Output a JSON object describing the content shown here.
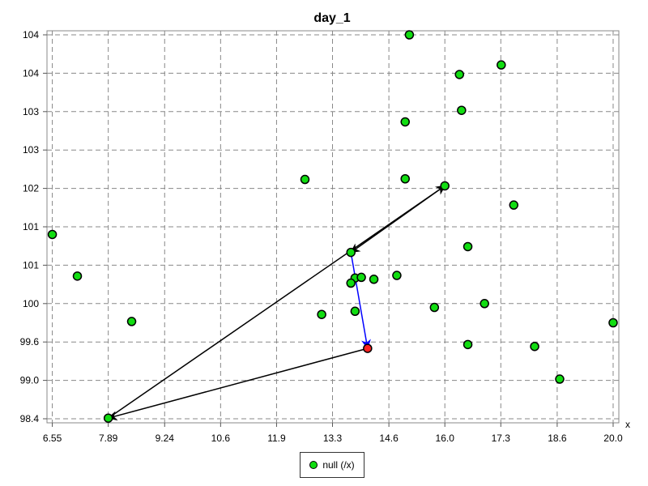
{
  "chart_data": {
    "type": "scatter",
    "title": "day_1",
    "xlabel": "x",
    "ylabel": "",
    "xlim": [
      6.5,
      20.0
    ],
    "ylim": [
      98.4,
      104.4
    ],
    "grid": true,
    "legend_position": "bottom-center",
    "x_ticks": [
      {
        "value": 6.55,
        "label": "6.55"
      },
      {
        "value": 7.89,
        "label": "7.89"
      },
      {
        "value": 9.24,
        "label": "9.24"
      },
      {
        "value": 10.58,
        "label": "10.6"
      },
      {
        "value": 11.92,
        "label": "11.9"
      },
      {
        "value": 13.26,
        "label": "13.3"
      },
      {
        "value": 14.61,
        "label": "14.6"
      },
      {
        "value": 15.95,
        "label": "16.0"
      },
      {
        "value": 17.29,
        "label": "17.3"
      },
      {
        "value": 18.64,
        "label": "18.6"
      },
      {
        "value": 19.98,
        "label": "20.0"
      }
    ],
    "y_ticks": [
      {
        "value": 98.4,
        "label": "98.4"
      },
      {
        "value": 99.0,
        "label": "99.0"
      },
      {
        "value": 99.6,
        "label": "99.6"
      },
      {
        "value": 100.2,
        "label": "100"
      },
      {
        "value": 100.8,
        "label": "101"
      },
      {
        "value": 101.4,
        "label": "101"
      },
      {
        "value": 102.0,
        "label": "102"
      },
      {
        "value": 102.6,
        "label": "103"
      },
      {
        "value": 103.2,
        "label": "103"
      },
      {
        "value": 103.8,
        "label": "104"
      },
      {
        "value": 104.4,
        "label": "104"
      }
    ],
    "series": [
      {
        "name": "null (/x)",
        "color": "#11dd11",
        "points": [
          {
            "x": 15.1,
            "y": 104.4
          },
          {
            "x": 16.3,
            "y": 103.78
          },
          {
            "x": 17.3,
            "y": 103.93
          },
          {
            "x": 16.35,
            "y": 103.22
          },
          {
            "x": 15.0,
            "y": 103.04
          },
          {
            "x": 12.6,
            "y": 102.14
          },
          {
            "x": 15.0,
            "y": 102.15
          },
          {
            "x": 15.95,
            "y": 102.04
          },
          {
            "x": 17.6,
            "y": 101.74
          },
          {
            "x": 6.55,
            "y": 101.28
          },
          {
            "x": 16.5,
            "y": 101.09
          },
          {
            "x": 13.7,
            "y": 101.0
          },
          {
            "x": 7.15,
            "y": 100.63
          },
          {
            "x": 13.8,
            "y": 100.6
          },
          {
            "x": 13.95,
            "y": 100.61
          },
          {
            "x": 14.25,
            "y": 100.58
          },
          {
            "x": 14.8,
            "y": 100.64
          },
          {
            "x": 13.7,
            "y": 100.52
          },
          {
            "x": 15.7,
            "y": 100.14
          },
          {
            "x": 16.9,
            "y": 100.2
          },
          {
            "x": 13.0,
            "y": 100.03
          },
          {
            "x": 13.8,
            "y": 100.08
          },
          {
            "x": 8.45,
            "y": 99.92
          },
          {
            "x": 19.98,
            "y": 99.9
          },
          {
            "x": 16.5,
            "y": 99.56
          },
          {
            "x": 18.1,
            "y": 99.53
          },
          {
            "x": 18.7,
            "y": 99.02
          },
          {
            "x": 7.89,
            "y": 98.41
          }
        ]
      }
    ],
    "highlight_point": {
      "x": 14.1,
      "y": 99.5,
      "color": "#ff2222"
    },
    "arrows": [
      {
        "from": [
          14.1,
          99.5
        ],
        "to": [
          7.89,
          98.41
        ],
        "color": "#000000"
      },
      {
        "from": [
          7.89,
          98.41
        ],
        "to": [
          15.95,
          102.04
        ],
        "color": "#000000"
      },
      {
        "from": [
          15.95,
          102.04
        ],
        "to": [
          13.7,
          101.0
        ],
        "color": "#000000"
      },
      {
        "from": [
          13.7,
          101.0
        ],
        "to": [
          14.1,
          99.5
        ],
        "color": "#0000ff"
      }
    ]
  },
  "legend": {
    "label": "null (/x)"
  }
}
